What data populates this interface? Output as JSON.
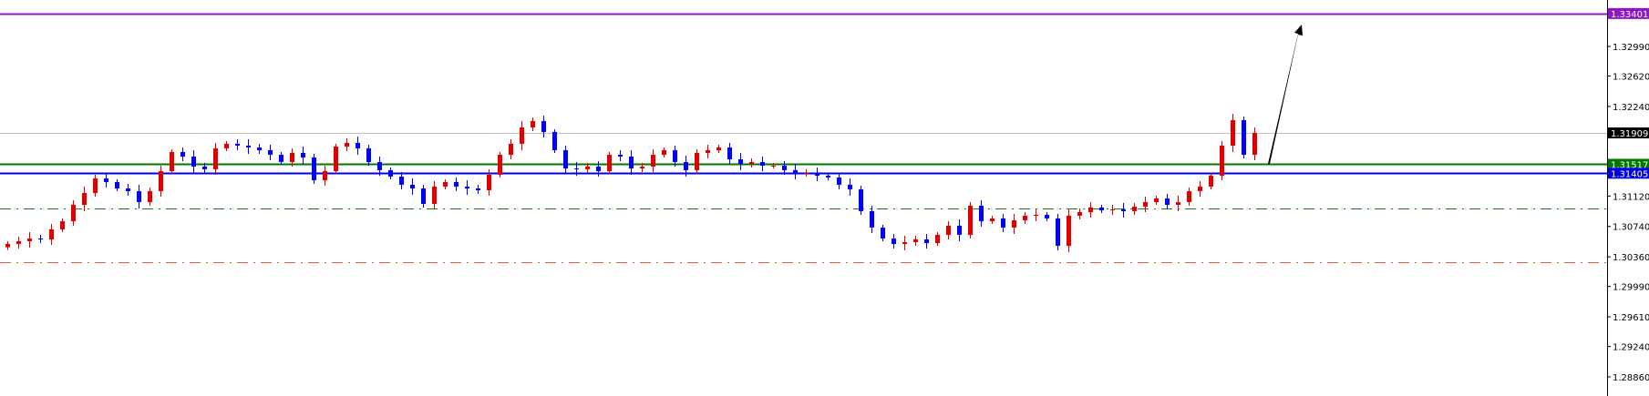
{
  "chart_data": {
    "type": "candlestick",
    "title": "",
    "xlabel": "",
    "ylabel": "",
    "ylim": [
      1.28621,
      1.3357
    ],
    "grid": false,
    "colors": {
      "bull": "#e00000",
      "bear": "#0000ff",
      "axis": "#000000"
    },
    "y_ticks": [
      "1.32990",
      "1.32620",
      "1.32240",
      "1.31120",
      "1.30740",
      "1.30360",
      "1.29990",
      "1.29610",
      "1.29240",
      "1.28860"
    ],
    "first_open": 1.3048,
    "close": [
      1.30521,
      1.30555,
      1.30589,
      1.30578,
      1.30703,
      1.30805,
      1.3101,
      1.31158,
      1.3134,
      1.31295,
      1.31215,
      1.31181,
      1.31044,
      1.31181,
      1.31431,
      1.3167,
      1.31613,
      1.31488,
      1.31454,
      1.31716,
      1.31773,
      1.3175,
      1.31727,
      1.31693,
      1.31636,
      1.31545,
      1.31659,
      1.31602,
      1.31317,
      1.31431,
      1.31738,
      1.31784,
      1.31716,
      1.31545,
      1.31443,
      1.31363,
      1.31261,
      1.31215,
      1.31022,
      1.31238,
      1.31295,
      1.31238,
      1.31215,
      1.31192,
      1.31386,
      1.31636,
      1.31773,
      1.31977,
      1.32057,
      1.3192,
      1.31693,
      1.31465,
      1.31454,
      1.31488,
      1.31431,
      1.31636,
      1.31613,
      1.31465,
      1.31488,
      1.31636,
      1.31693,
      1.31545,
      1.31443,
      1.31659,
      1.31693,
      1.31727,
      1.31579,
      1.31522,
      1.31545,
      1.31499,
      1.31499,
      1.31443,
      1.31408,
      1.31408,
      1.31374,
      1.31352,
      1.31261,
      1.31204,
      1.30931,
      1.30726,
      1.30589,
      1.30521,
      1.30544,
      1.30578,
      1.30532,
      1.30635,
      1.30749,
      1.30635,
      1.30999,
      1.30805,
      1.3084,
      1.30726,
      1.30817,
      1.30874,
      1.30885,
      1.3084,
      1.30498,
      1.30874,
      1.30919,
      1.30976,
      1.30942,
      1.30953,
      1.30931,
      1.30987,
      1.31044,
      1.3109,
      1.3101,
      1.31044,
      1.31181,
      1.31238,
      1.31374,
      1.3175,
      1.32068,
      1.31636,
      1.31909
    ],
    "levels": [
      {
        "price": 1.33401,
        "label": "1.33401",
        "color": "#8e16c6",
        "style": "solid",
        "tag": true
      },
      {
        "price": 1.31909,
        "label": "1.31909",
        "color": "#c0c0c0",
        "tagColor": "#000000",
        "style": "thin",
        "tag": true
      },
      {
        "price": 1.31517,
        "label": "1.31517",
        "color": "#007800",
        "style": "solid",
        "tag": true
      },
      {
        "price": 1.31405,
        "label": "1.31405",
        "color": "#0000e0",
        "style": "solid",
        "tag": true
      },
      {
        "price": 1.3096,
        "color": "#1e7a1e",
        "style": "dashdot",
        "tag": false
      },
      {
        "price": 1.30293,
        "color": "#e0603a",
        "style": "dashdot",
        "tag": false
      }
    ],
    "annotation": {
      "type": "arrow",
      "direction": "up",
      "color": "#000000"
    }
  }
}
